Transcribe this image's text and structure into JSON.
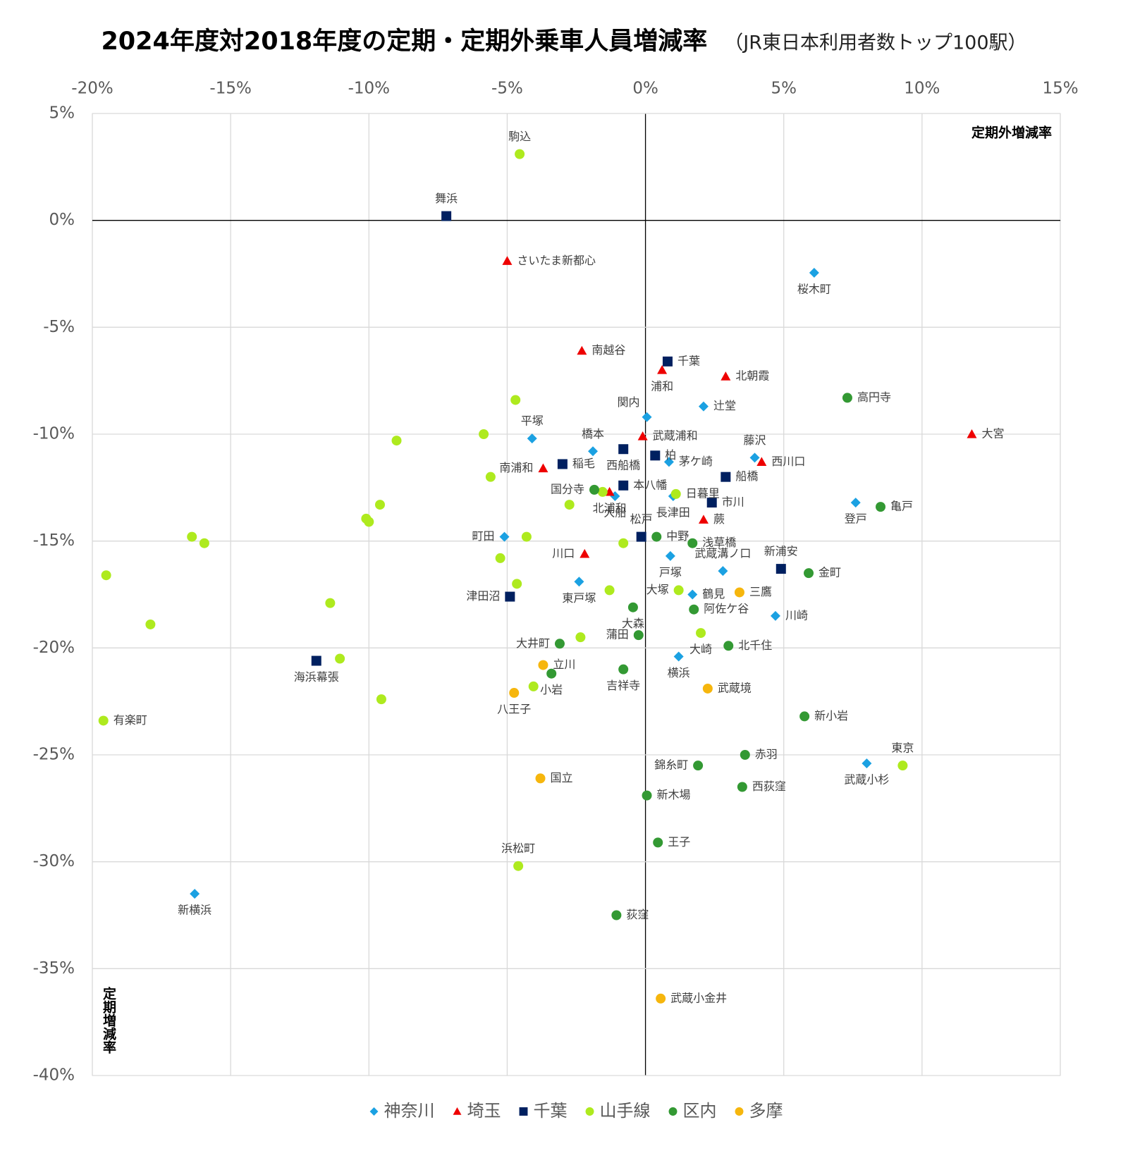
{
  "chart_data": {
    "type": "scatter",
    "title": "2024年度対2018年度の定期・定期外乗車人員増減率",
    "subtitle": "（JR東日本利用者数トップ100駅）",
    "x_label": "定期外増減率",
    "y_label": "定期増減率",
    "xlim": [
      -20,
      15
    ],
    "ylim": [
      -40,
      5
    ],
    "xticks": [
      {
        "value": -20,
        "label": "-20%"
      },
      {
        "value": -15,
        "label": "-15%"
      },
      {
        "value": -10,
        "label": "-10%"
      },
      {
        "value": -5,
        "label": "-5%"
      },
      {
        "value": 0,
        "label": "0%"
      },
      {
        "value": 5,
        "label": "5%"
      },
      {
        "value": 10,
        "label": "10%"
      },
      {
        "value": 15,
        "label": "15%"
      }
    ],
    "yticks": [
      {
        "value": 5,
        "label": "5%"
      },
      {
        "value": 0,
        "label": "0%"
      },
      {
        "value": -5,
        "label": "-5%"
      },
      {
        "value": -10,
        "label": "-10%"
      },
      {
        "value": -15,
        "label": "-15%"
      },
      {
        "value": -20,
        "label": "-20%"
      },
      {
        "value": -25,
        "label": "-25%"
      },
      {
        "value": -30,
        "label": "-30%"
      },
      {
        "value": -35,
        "label": "-35%"
      },
      {
        "value": -40,
        "label": "-40%"
      }
    ],
    "grid": true,
    "legend": "bottom",
    "series": [
      {
        "name": "神奈川",
        "color": "#1ba1e2",
        "marker": "diamond",
        "labels": [
          "桜木町",
          "関内",
          "辻堂",
          "平塚",
          "橋本",
          "藤沢",
          "茅ケ崎",
          "大船",
          "登戸",
          "町田",
          "戸塚",
          "武蔵溝ノ口",
          "東戸塚",
          "鶴見",
          "川崎",
          "横浜",
          "武蔵小杉",
          "新横浜",
          "長津田"
        ],
        "x": [
          6.1,
          0.05,
          2.1,
          -4.1,
          -1.9,
          3.95,
          0.85,
          -1.1,
          7.6,
          -5.1,
          0.9,
          2.8,
          -2.4,
          1.7,
          4.7,
          1.2,
          8.0,
          -16.3,
          1.0
        ],
        "values": [
          -2.45,
          -9.2,
          -8.7,
          -10.2,
          -10.8,
          -11.1,
          -11.3,
          -12.9,
          -13.2,
          -14.8,
          -15.7,
          -16.4,
          -16.9,
          -17.5,
          -18.5,
          -20.4,
          -25.4,
          -31.5,
          -12.9
        ]
      },
      {
        "name": "埼玉",
        "color": "#ee0000",
        "marker": "triangle",
        "labels": [
          "さいたま新都心",
          "南越谷",
          "浦和",
          "北朝霞",
          "大宮",
          "武蔵浦和",
          "西川口",
          "南浦和",
          "北浦和",
          "蕨",
          "川口"
        ],
        "x": [
          -5.0,
          -2.3,
          0.6,
          2.9,
          11.8,
          -0.1,
          4.2,
          -3.7,
          -1.3,
          2.1,
          -2.2
        ],
        "values": [
          -1.9,
          -6.1,
          -7.0,
          -7.3,
          -10.0,
          -10.1,
          -11.3,
          -11.6,
          -12.7,
          -14.0,
          -15.6
        ]
      },
      {
        "name": "千葉",
        "color": "#002060",
        "marker": "square",
        "labels": [
          "舞浜",
          "千葉",
          "西船橋",
          "柏",
          "稲毛",
          "船橋",
          "本八幡",
          "市川",
          "松戸",
          "新浦安",
          "津田沼",
          "海浜幕張"
        ],
        "x": [
          -7.2,
          0.8,
          -0.8,
          0.35,
          -3.0,
          2.9,
          -0.8,
          2.4,
          -0.15,
          4.9,
          -4.9,
          -11.9
        ],
        "values": [
          0.2,
          -6.6,
          -10.7,
          -11.0,
          -11.4,
          -12.0,
          -12.4,
          -13.2,
          -14.8,
          -16.3,
          -17.6,
          -20.6
        ]
      },
      {
        "name": "山手線",
        "color": "#aeea1e",
        "marker": "circle",
        "labels": [
          "駒込",
          "日暮里",
          "大塚",
          "大崎",
          "有楽町",
          "東京",
          "浜松町",
          null,
          null,
          null,
          null,
          null,
          null,
          null,
          null,
          null,
          null,
          null,
          null,
          null,
          null,
          null,
          null,
          null,
          null,
          null,
          null,
          null,
          null,
          null
        ],
        "x": [
          -4.55,
          1.1,
          1.2,
          2.0,
          -19.6,
          9.3,
          -4.6,
          -4.7,
          -9.0,
          -5.85,
          -5.6,
          -9.6,
          -10.1,
          -10.0,
          -16.4,
          -15.95,
          -19.5,
          -4.3,
          -5.25,
          -4.65,
          -1.55,
          -2.75,
          -0.8,
          -1.3,
          -11.4,
          -17.9,
          -2.35,
          -11.05,
          -4.05,
          -9.55
        ],
        "values": [
          3.1,
          -12.8,
          -17.3,
          -19.3,
          -23.4,
          -25.5,
          -30.2,
          -8.4,
          -10.3,
          -10.0,
          -12.0,
          -13.3,
          -13.95,
          -14.1,
          -14.8,
          -15.1,
          -16.6,
          -14.8,
          -15.8,
          -17.0,
          -12.7,
          -13.3,
          -15.1,
          -17.3,
          -17.9,
          -18.9,
          -19.5,
          -20.5,
          -21.8,
          -22.4
        ]
      },
      {
        "name": "区内",
        "color": "#339933",
        "marker": "circle",
        "labels": [
          "高円寺",
          "国分寺",
          "亀戸",
          "中野",
          "浅草橋",
          "金町",
          "大森",
          "阿佐ケ谷",
          "蒲田",
          "大井町",
          "北千住",
          "吉祥寺",
          "小岩",
          "新小岩",
          "赤羽",
          "錦糸町",
          "西荻窪",
          "新木場",
          "王子",
          "荻窪"
        ],
        "x": [
          7.3,
          -1.85,
          8.5,
          0.4,
          1.7,
          5.9,
          -0.45,
          1.75,
          -0.25,
          -3.1,
          3.0,
          -0.8,
          -3.4,
          5.75,
          3.6,
          1.9,
          3.5,
          0.05,
          0.45,
          -1.05
        ],
        "values": [
          -8.3,
          -12.6,
          -13.4,
          -14.8,
          -15.1,
          -16.5,
          -18.1,
          -18.2,
          -19.4,
          -19.8,
          -19.9,
          -21.0,
          -21.2,
          -23.2,
          -25.0,
          -25.5,
          -26.5,
          -26.9,
          -29.1,
          -32.5
        ]
      },
      {
        "name": "多摩",
        "color": "#f6b60d",
        "marker": "circle",
        "labels": [
          "三鷹",
          "立川",
          "武蔵境",
          "八王子",
          "国立",
          "武蔵小金井"
        ],
        "x": [
          3.4,
          -3.7,
          2.25,
          -4.75,
          -3.8,
          0.55
        ],
        "values": [
          -17.4,
          -20.8,
          -21.9,
          -22.1,
          -26.1,
          -36.4
        ]
      }
    ]
  }
}
